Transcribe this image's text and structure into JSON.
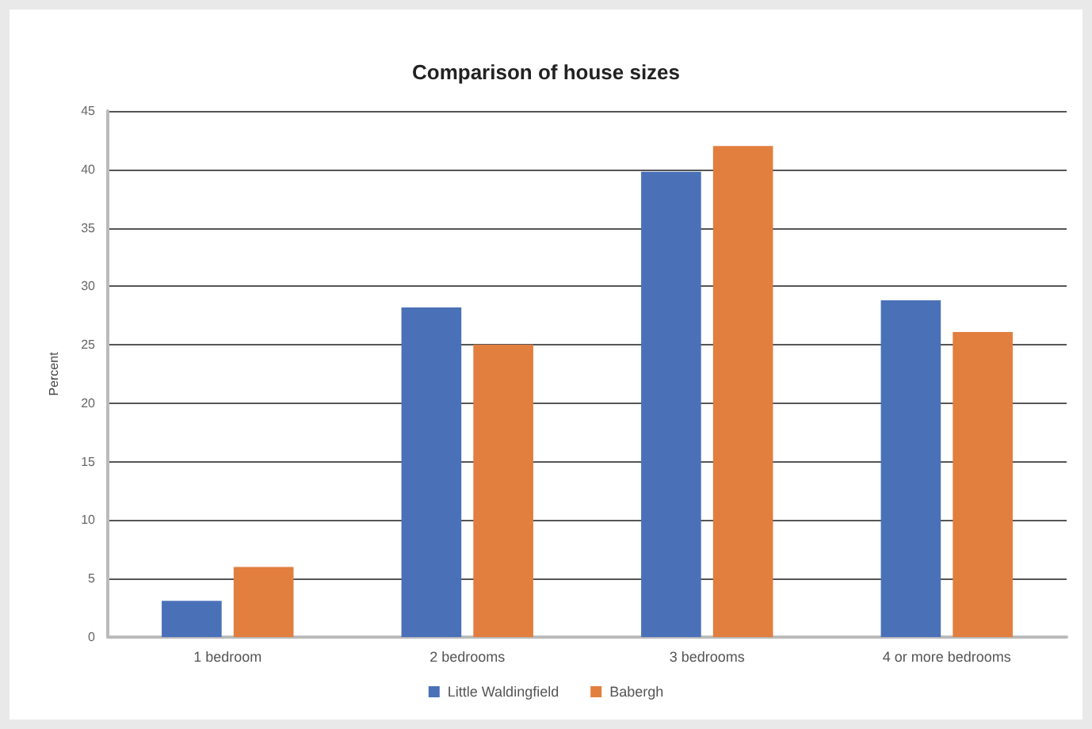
{
  "chart_data": {
    "type": "bar",
    "title": "Comparison of house sizes",
    "ylabel": "Percent",
    "categories": [
      "1 bedroom",
      "2 bedrooms",
      "3 bedrooms",
      "4 or more bedrooms"
    ],
    "series": [
      {
        "name": "Little Waldingfield",
        "color": "#4a71b8",
        "values": [
          3.1,
          28.2,
          39.8,
          28.8
        ]
      },
      {
        "name": "Babergh",
        "color": "#e27e3e",
        "values": [
          6.0,
          25.0,
          42.0,
          26.1
        ]
      }
    ],
    "ylim": [
      0,
      45
    ],
    "yticks": [
      0,
      5,
      10,
      15,
      20,
      25,
      30,
      35,
      40,
      45
    ],
    "grid": "y",
    "legend": "bottom"
  }
}
